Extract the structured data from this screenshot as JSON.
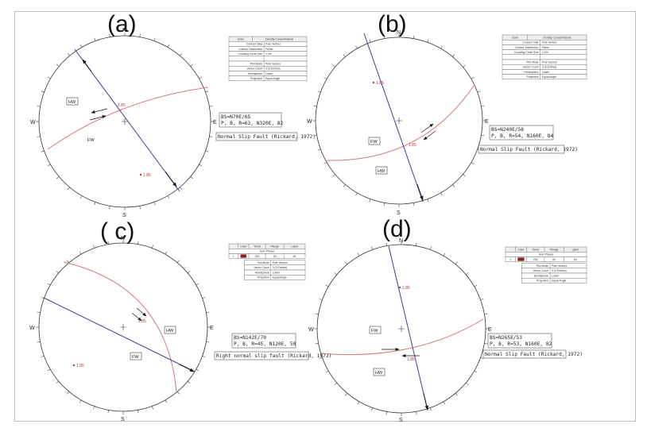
{
  "panels": [
    {
      "label": "(a)",
      "legend": {
        "type": "density",
        "header": [
          "Color",
          "Density Concentrations"
        ],
        "rows": [
          [
            "Contour Data",
            "Pole Vectors"
          ],
          [
            "Contour Distribution",
            "Fisher"
          ],
          [
            "Counting Circle Size",
            "1.0%"
          ],
          [
            "",
            ""
          ],
          [
            "Plot Mode",
            "Pole Vectors"
          ],
          [
            "Vector Count",
            "3 (3 Entries)"
          ],
          [
            "Hemisphere",
            "Lower"
          ],
          [
            "Projection",
            "Equal Angle"
          ]
        ]
      },
      "blocks": [
        "HW",
        "FW"
      ],
      "pole_label": "1.85",
      "plane_label": "1.85",
      "notes": [
        "BS=N70E/65",
        "P, B, R=63, N320E, 82"
      ],
      "fault_type": "Normal Slip Fault (Rickard, 1972)"
    },
    {
      "label": "(b)",
      "legend": {
        "type": "density",
        "header": [
          "Color",
          "Density Concentrations"
        ],
        "rows": [
          [
            "Contour Data",
            "Pole Vectors"
          ],
          [
            "Contour Distribution",
            "Fisher"
          ],
          [
            "Counting Circle Size",
            "1.0%"
          ],
          [
            "",
            ""
          ],
          [
            "Plot Mode",
            "Pole Vectors"
          ],
          [
            "Vector Count",
            "3 (3 Entries)"
          ],
          [
            "Hemisphere",
            "Lower"
          ],
          [
            "Projection",
            "Equal Angle"
          ]
        ]
      },
      "blocks": [
        "FW",
        "HW"
      ],
      "pole_label": "1.85",
      "plane_label": "1.85",
      "notes": [
        "BS=N240E/58",
        "P, B, R=54, N160E, 84"
      ],
      "fault_type": "Normal Slip Fault (Rickard, 1972)"
    },
    {
      "label": "( c)",
      "legend": {
        "type": "planes",
        "header": [
          "",
          "Color",
          "Trend",
          "Plunge",
          "Label"
        ],
        "subheader": "User Planes",
        "row": [
          "1",
          "",
          "320",
          "25",
          "60"
        ],
        "rows": [
          [
            "Plot Mode",
            "Pole Vectors"
          ],
          [
            "Vector Count",
            "3 (3 Entries)"
          ],
          [
            "Hemisphere",
            "Lower"
          ],
          [
            "Projection",
            "Equal Angle"
          ]
        ]
      },
      "blocks": [
        "HW",
        "FW"
      ],
      "pole_label": "1.85",
      "plane_label": "1.85",
      "notes": [
        "BS=N142E/70",
        "P, B, R=45, N120E, 50"
      ],
      "fault_type": "Right normal slip fault (Rickard, 1972)"
    },
    {
      "label": "(d)",
      "legend": {
        "type": "planes",
        "header": [
          "",
          "Color",
          "Trend",
          "Plunge",
          "Label"
        ],
        "subheader": "User Planes",
        "row": [
          "1",
          "",
          "200",
          "60",
          "60"
        ],
        "rows": [
          [
            "Plot Mode",
            "Pole Vectors"
          ],
          [
            "Vector Count",
            "3 (3 Entries)"
          ],
          [
            "Hemisphere",
            "Lower"
          ],
          [
            "Projection",
            "Equal Angle"
          ]
        ]
      },
      "blocks": [
        "FW",
        "HW"
      ],
      "pole_label": "1.85",
      "plane_label": "1.85",
      "notes": [
        "BS=N265E/53",
        "P, B, R=53, N160E, 82"
      ],
      "fault_type": "Normal Slip Fault (Rickard, 1972)"
    }
  ],
  "directions": {
    "n": "N",
    "s": "S",
    "e": "E",
    "w": "W"
  },
  "colors": {
    "great_circle": "#d9777a",
    "fault_line": "#3a3f9a",
    "pole": "#b23a3a",
    "legend_swatch": "#8e1e1e"
  }
}
